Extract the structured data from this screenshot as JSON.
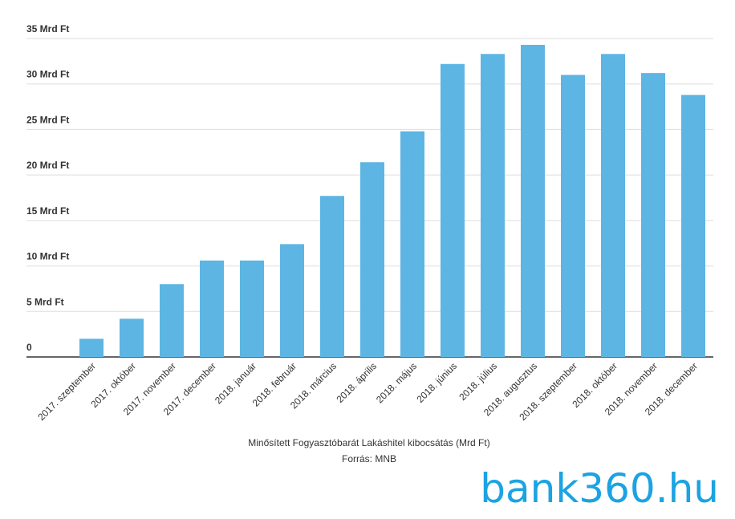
{
  "chart_data": {
    "type": "bar",
    "categories": [
      "2017. szeptember",
      "2017. október",
      "2017. november",
      "2017. december",
      "2018. január",
      "2018. február",
      "2018. március",
      "2018. április",
      "2018. május",
      "2018. június",
      "2018. július",
      "2018. augusztus",
      "2018. szeptember",
      "2018. október",
      "2018. november",
      "2018. december"
    ],
    "values": [
      2.0,
      4.2,
      8.0,
      10.6,
      10.6,
      12.4,
      17.7,
      21.4,
      24.8,
      32.2,
      33.3,
      34.3,
      31.0,
      33.3,
      31.2,
      28.8
    ],
    "color": "#5db5e3",
    "ylim": [
      0,
      35
    ],
    "yticks": [
      0,
      {
        "value": 5,
        "label": "5 Mrd Ft"
      },
      {
        "value": 10,
        "label": "10 Mrd Ft"
      },
      {
        "value": 15,
        "label": "15 Mrd Ft"
      },
      {
        "value": 20,
        "label": "20 Mrd Ft"
      },
      {
        "value": 25,
        "label": "25 Mrd Ft"
      },
      {
        "value": 30,
        "label": "30 Mrd Ft"
      },
      {
        "value": 35,
        "label": "35 Mrd Ft"
      }
    ],
    "grid": true,
    "caption": "Minősített Fogyasztóbarát Lakáshitel kibocsátás (Mrd Ft)",
    "source": "Forrás: MNB",
    "logo": "bank360.hu"
  }
}
